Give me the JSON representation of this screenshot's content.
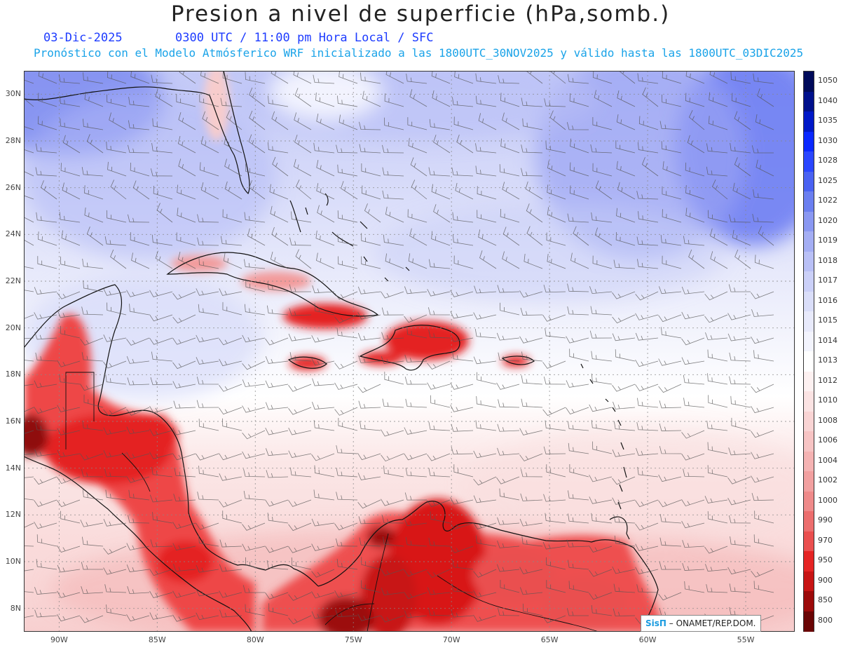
{
  "header": {
    "title": "Presion a nivel de superficie (hPa,somb.)",
    "date": "03-Dic-2025",
    "valid_time": "0300 UTC / 11:00 pm Hora Local / SFC",
    "forecast_info": "Pronóstico con el Modelo Atmósferico WRF inicializado a las 1800UTC_30NOV2025 y válido hasta las  1800UTC_03DIC2025"
  },
  "map": {
    "lat_range": [
      7,
      31
    ],
    "lon_range": [
      -91.8,
      -52.5
    ],
    "lat_labels": [
      "30N",
      "28N",
      "26N",
      "24N",
      "22N",
      "20N",
      "18N",
      "16N",
      "14N",
      "12N",
      "10N",
      "8N"
    ],
    "lat_values": [
      30,
      28,
      26,
      24,
      22,
      20,
      18,
      16,
      14,
      12,
      10,
      8
    ],
    "lon_labels": [
      "90W",
      "85W",
      "80W",
      "75W",
      "70W",
      "65W",
      "60W",
      "55W"
    ],
    "lon_values": [
      -90,
      -85,
      -80,
      -75,
      -70,
      -65,
      -60,
      -55
    ],
    "gridlines": true,
    "wind_barbs": true
  },
  "colorbar": {
    "labels": [
      "1050",
      "1040",
      "1035",
      "1030",
      "1028",
      "1025",
      "1022",
      "1020",
      "1019",
      "1018",
      "1017",
      "1016",
      "1015",
      "1014",
      "1013",
      "1012",
      "1010",
      "1008",
      "1006",
      "1004",
      "1002",
      "1000",
      "990",
      "970",
      "950",
      "900",
      "850",
      "800"
    ],
    "colors": [
      "#000a5a",
      "#00108c",
      "#0018c8",
      "#0a28ff",
      "#2a46ff",
      "#4a62f2",
      "#6b7ff0",
      "#8a98f2",
      "#a4aef4",
      "#b9c0f6",
      "#cbd0f8",
      "#dadef9",
      "#e8eafb",
      "#f3f4fd",
      "#ffffff",
      "#fdf1f1",
      "#fbe3e3",
      "#f9d4d4",
      "#f7c4c4",
      "#f5b3b3",
      "#f2a0a0",
      "#ef8a8a",
      "#ec6e6e",
      "#ea4f4f",
      "#e52424",
      "#c81414",
      "#9c0a0a",
      "#6a0505"
    ]
  },
  "credit": {
    "logo": "SisΠ",
    "text": "– ONAMET/REP.DOM."
  }
}
